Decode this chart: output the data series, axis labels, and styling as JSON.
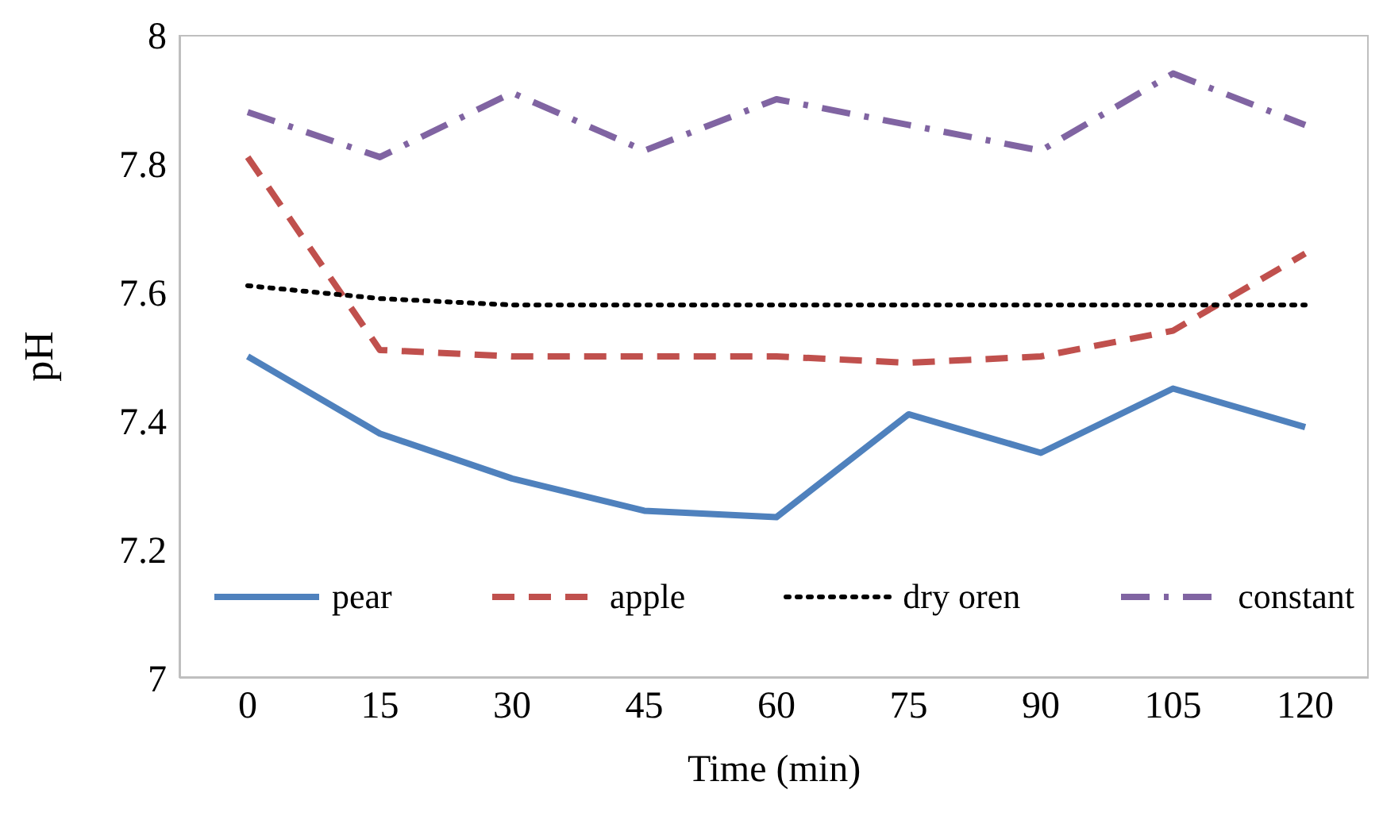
{
  "chart_data": {
    "type": "line",
    "xlabel": "Time (min)",
    "ylabel": "pH",
    "categories": [
      "0",
      "15",
      "30",
      "45",
      "60",
      "75",
      "90",
      "105",
      "120"
    ],
    "series": [
      {
        "name": "pear",
        "color": "#4f81bd",
        "line_style": "solid",
        "values": [
          7.5,
          7.38,
          7.31,
          7.26,
          7.25,
          7.41,
          7.35,
          7.45,
          7.39
        ]
      },
      {
        "name": "apple",
        "color": "#c0504d",
        "line_style": "dashed",
        "values": [
          7.81,
          7.51,
          7.5,
          7.5,
          7.5,
          7.49,
          7.5,
          7.54,
          7.66
        ]
      },
      {
        "name": "dry oren",
        "color": "#000000",
        "line_style": "dotted",
        "values": [
          7.61,
          7.59,
          7.58,
          7.58,
          7.58,
          7.58,
          7.58,
          7.58,
          7.58
        ]
      },
      {
        "name": "constant",
        "color": "#8064a2",
        "line_style": "dashdot",
        "values": [
          7.88,
          7.81,
          7.91,
          7.82,
          7.9,
          7.86,
          7.82,
          7.94,
          7.86
        ]
      }
    ],
    "ylim": [
      7,
      8
    ],
    "yticks": [
      7,
      7.2,
      7.4,
      7.6,
      7.8,
      8
    ],
    "grid": false,
    "legend": "bottom",
    "marker": "none"
  }
}
